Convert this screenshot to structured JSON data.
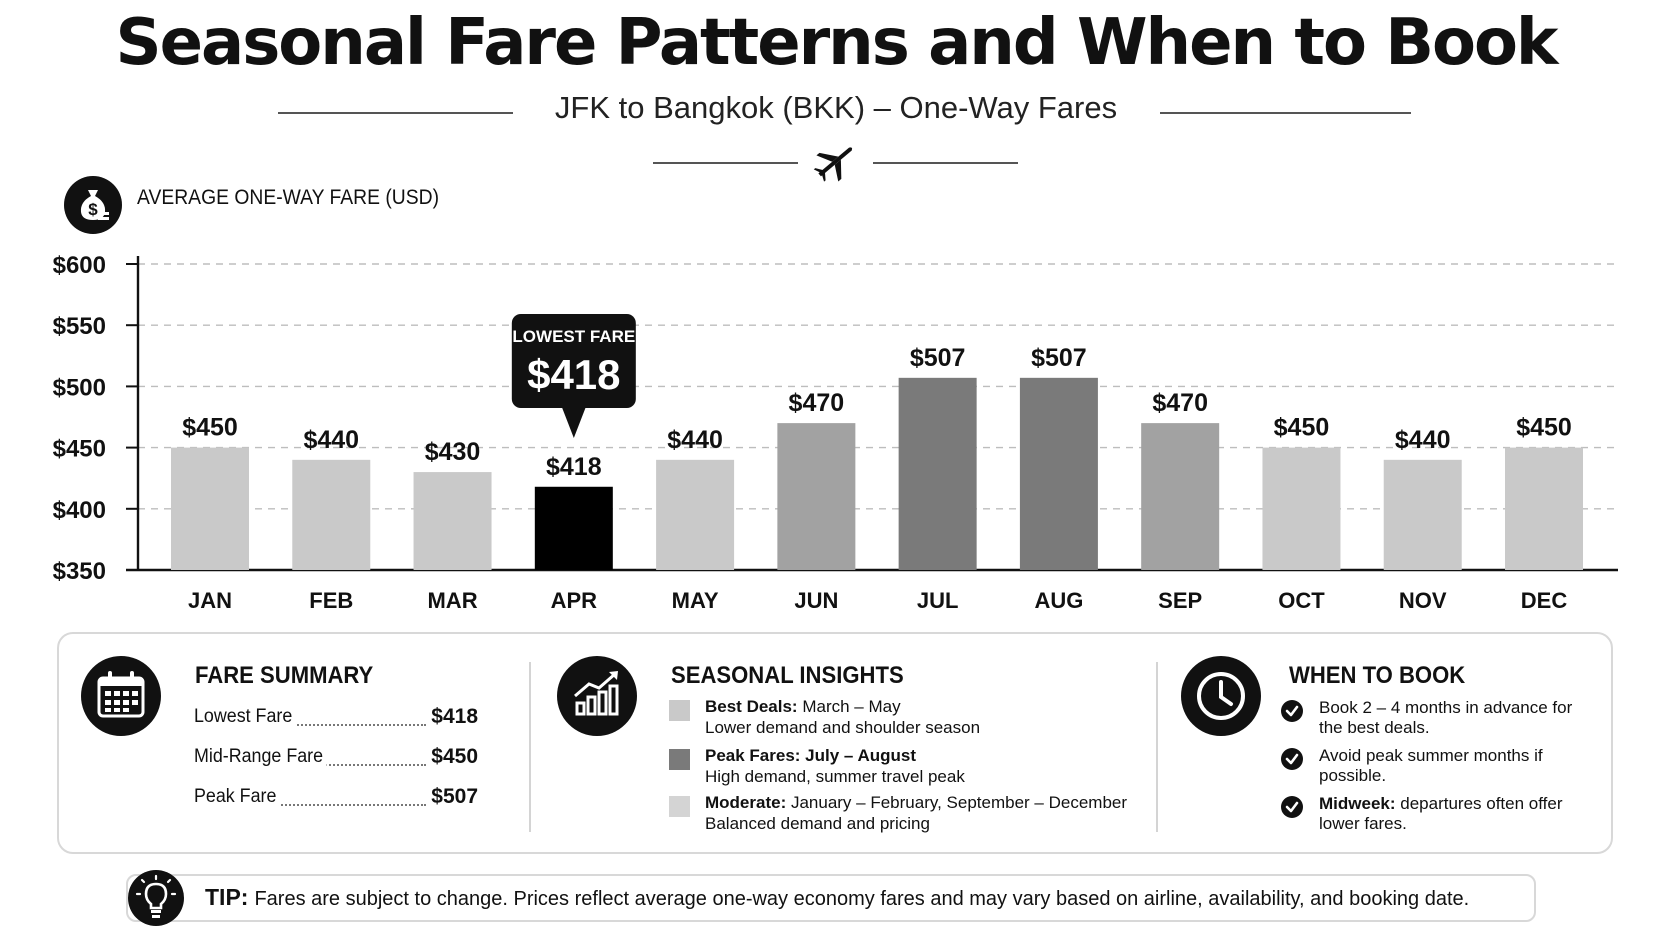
{
  "header": {
    "title": "Seasonal Fare Patterns and When to Book",
    "subtitle": "JFK to Bangkok (BKK) – One-Way Fares",
    "unit_label": "AVERAGE ONE-WAY FARE (USD)"
  },
  "icons": {
    "plane": "airplane-icon",
    "unit": "money-bag-icon",
    "summary": "calendar-icon",
    "insights": "growth-chart-icon",
    "booking": "clock-icon",
    "check": "checkmark-icon",
    "tip": "lightbulb-icon"
  },
  "colors": {
    "lowest": "#000000",
    "peak": "#7a7a7a",
    "shoulder": "#a2a2a2",
    "moderate": "#c9c9c9",
    "callout": "#111111"
  },
  "chart_data": {
    "type": "bar",
    "categories": [
      "JAN",
      "FEB",
      "MAR",
      "APR",
      "MAY",
      "JUN",
      "JUL",
      "AUG",
      "SEP",
      "OCT",
      "NOV",
      "DEC"
    ],
    "values": [
      450,
      440,
      430,
      418,
      440,
      470,
      507,
      507,
      470,
      450,
      440,
      450
    ],
    "value_labels": [
      "$450",
      "$440",
      "$430",
      "$418",
      "$440",
      "$470",
      "$507",
      "$507",
      "$470",
      "$450",
      "$440",
      "$450"
    ],
    "bar_tones": [
      "moderate",
      "moderate",
      "moderate",
      "lowest",
      "moderate",
      "shoulder",
      "peak",
      "peak",
      "shoulder",
      "moderate",
      "moderate",
      "moderate"
    ],
    "ylim": [
      350,
      600
    ],
    "yticks": [
      350,
      400,
      450,
      500,
      550,
      600
    ],
    "ytick_labels": [
      "$350",
      "$400",
      "$450",
      "$500",
      "$550",
      "$600"
    ],
    "grid": true,
    "ylabel": "AVERAGE ONE-WAY FARE (USD)",
    "annotation": {
      "category": "APR",
      "label": "LOWEST FARE",
      "value": "$418"
    }
  },
  "summary": {
    "title": "FARE SUMMARY",
    "rows": [
      {
        "label": "Lowest Fare",
        "value": "$418"
      },
      {
        "label": "Mid-Range Fare",
        "value": "$450"
      },
      {
        "label": "Peak Fare",
        "value": "$507"
      }
    ]
  },
  "insights": {
    "title": "SEASONAL INSIGHTS",
    "items": [
      {
        "tone": "moderate",
        "head": "Best Deals:",
        "head_rest": " March – May",
        "line2": "Lower demand and shoulder season"
      },
      {
        "tone": "peak",
        "head": "Peak Fares: July – August",
        "head_rest": "",
        "line2": "High demand, summer travel peak"
      },
      {
        "tone": "moderate",
        "head": "Moderate:",
        "head_rest": " January – February, September – December",
        "line2": "Balanced demand and pricing"
      }
    ]
  },
  "booking": {
    "title": "WHEN TO BOOK",
    "items": [
      {
        "head": "",
        "text": "Book 2 – 4 months in advance for the best deals."
      },
      {
        "head": "",
        "text": "Avoid peak summer months if possible."
      },
      {
        "head": "Midweek:",
        "text": " departures often offer lower fares."
      }
    ]
  },
  "tip": {
    "label": "TIP:",
    "text": "Fares are subject to change. Prices reflect average one-way economy fares and may vary based on airline, availability, and booking date."
  }
}
